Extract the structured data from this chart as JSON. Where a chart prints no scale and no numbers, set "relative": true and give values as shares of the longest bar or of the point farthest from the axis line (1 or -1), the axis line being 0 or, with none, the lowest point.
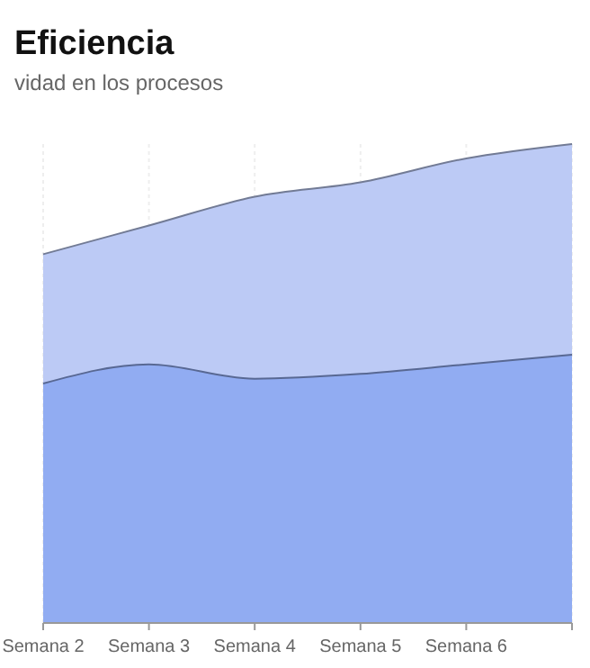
{
  "chart_data": {
    "type": "area",
    "title": "Eficiencia",
    "subtitle": "vidad en los procesos",
    "relative": true,
    "grid": "x",
    "categories": [
      "Semana 2",
      "Semana 3",
      "Semana 4",
      "Semana 5",
      "Semana 6",
      null
    ],
    "series": [
      {
        "color": "#bccaf5",
        "values": [
          0.77,
          0.83,
          0.89,
          0.92,
          0.97,
          1
        ]
      },
      {
        "color": "#91acf2",
        "values": [
          0.5,
          0.54,
          0.51,
          0.52,
          0.54,
          0.56
        ]
      }
    ]
  }
}
